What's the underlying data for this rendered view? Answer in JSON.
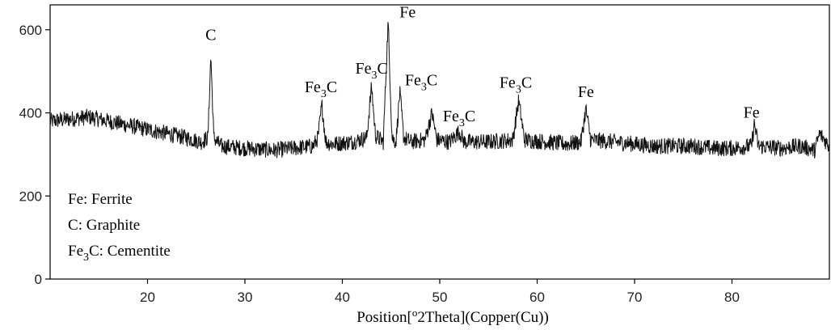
{
  "chart_data": {
    "type": "line",
    "xlabel": "Position[°2Theta](Copper(Cu))",
    "xlabel_parts": {
      "pre": "Position[",
      "sup": "o",
      "post": "2Theta](Copper(Cu))"
    },
    "ylabel": "",
    "xlim": [
      10,
      90
    ],
    "ylim": [
      0,
      660
    ],
    "x_ticks": [
      20,
      30,
      40,
      50,
      60,
      70,
      80
    ],
    "y_ticks": [
      0,
      200,
      400,
      600
    ],
    "grid": false,
    "series": [
      {
        "x": [
          10,
          12,
          14,
          16,
          18,
          20,
          22,
          24,
          25.5,
          26.2,
          26.5,
          26.8,
          27.5,
          30,
          33,
          35,
          37,
          37.5,
          37.9,
          38.3,
          39,
          41,
          42.5,
          43.0,
          43.4,
          44.2,
          44.7,
          45.1,
          45.5,
          45.9,
          46.3,
          47,
          48.5,
          49.2,
          49.7,
          51,
          52,
          52.5,
          55,
          57.5,
          58.1,
          58.7,
          61,
          63,
          64.5,
          65.0,
          65.5,
          68,
          72,
          76,
          78,
          80,
          82,
          82.3,
          82.7,
          85,
          87,
          88.5,
          89,
          90
        ],
        "y": [
          380,
          385,
          390,
          380,
          370,
          360,
          350,
          340,
          330,
          340,
          540,
          340,
          320,
          315,
          310,
          315,
          320,
          340,
          420,
          330,
          325,
          330,
          340,
          465,
          345,
          330,
          620,
          340,
          330,
          450,
          340,
          330,
          335,
          400,
          335,
          330,
          355,
          330,
          330,
          335,
          430,
          335,
          330,
          325,
          330,
          410,
          335,
          330,
          320,
          320,
          315,
          315,
          320,
          375,
          320,
          315,
          320,
          310,
          350,
          320
        ]
      }
    ],
    "annotations": [
      {
        "main": "C",
        "sub": "",
        "suffix": "",
        "x": 26.5,
        "y": 575
      },
      {
        "main": "Fe",
        "sub": "3",
        "suffix": "C",
        "x": 37.8,
        "y": 450
      },
      {
        "main": "Fe",
        "sub": "3",
        "suffix": "C",
        "x": 43.0,
        "y": 495
      },
      {
        "main": "Fe",
        "sub": "",
        "suffix": "",
        "x": 46.7,
        "y": 630
      },
      {
        "main": "Fe",
        "sub": "3",
        "suffix": "C",
        "x": 48.1,
        "y": 466
      },
      {
        "main": "Fe",
        "sub": "3",
        "suffix": "C",
        "x": 52.0,
        "y": 380
      },
      {
        "main": "Fe",
        "sub": "3",
        "suffix": "C",
        "x": 57.8,
        "y": 460
      },
      {
        "main": "Fe",
        "sub": "",
        "suffix": "",
        "x": 65.0,
        "y": 438
      },
      {
        "main": "Fe",
        "sub": "",
        "suffix": "",
        "x": 82.0,
        "y": 388
      }
    ],
    "legend": [
      {
        "main": "Fe",
        "sub": "",
        "rest": ": Ferrite"
      },
      {
        "main": "C",
        "sub": "",
        "rest": ": Graphite"
      },
      {
        "main": "Fe",
        "sub": "3",
        "rest": "C: Cementite"
      }
    ]
  }
}
